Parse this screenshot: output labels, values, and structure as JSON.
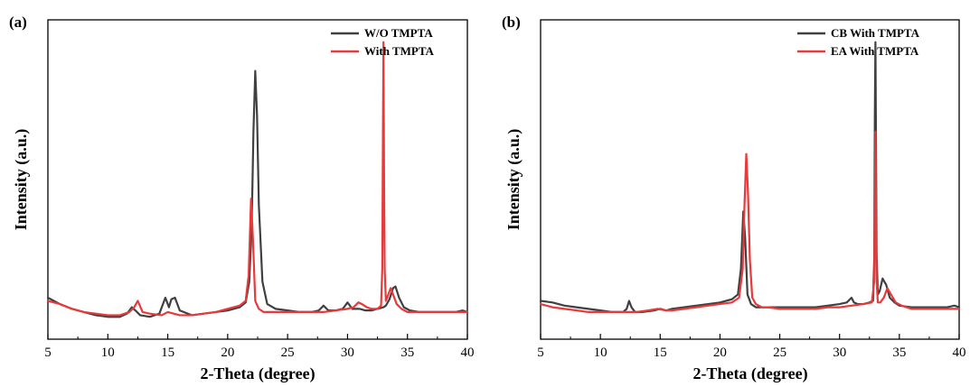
{
  "chart_data": [
    {
      "type": "line",
      "panel_label": "(a)",
      "xlabel": "2-Theta (degree)",
      "ylabel": "Intensity (a.u.)",
      "xlim": [
        5,
        40
      ],
      "ylim": [
        0,
        100
      ],
      "xticks": [
        5,
        10,
        15,
        20,
        25,
        30,
        35,
        40
      ],
      "yticks_shown": false,
      "grid": false,
      "legend_position": "top-right",
      "series": [
        {
          "name": "W/O TMPTA",
          "color": "#404040",
          "x": [
            5,
            6,
            7,
            8,
            9,
            10,
            11,
            11.6,
            12.0,
            12.3,
            12.7,
            13.5,
            14.3,
            14.8,
            15.1,
            15.3,
            15.6,
            16.0,
            17,
            18,
            19,
            20,
            21,
            21.5,
            21.8,
            22.0,
            22.15,
            22.3,
            22.45,
            22.6,
            22.9,
            23.3,
            24,
            25,
            26,
            27,
            27.6,
            28.0,
            28.4,
            29,
            29.6,
            30.0,
            30.4,
            31,
            31.5,
            32,
            32.5,
            32.8,
            33.0,
            33.2,
            33.5,
            33.8,
            34.0,
            34.3,
            34.7,
            35.2,
            36,
            37,
            38,
            39,
            39.6,
            40
          ],
          "y": [
            13,
            11,
            9.5,
            8.5,
            7.5,
            7,
            7,
            8,
            10,
            9,
            7.5,
            7,
            8,
            13,
            10,
            12.5,
            13,
            9,
            7.5,
            8,
            8.5,
            9,
            10,
            11.5,
            18,
            35,
            65,
            84,
            70,
            42,
            18,
            11,
            9.5,
            9,
            8.5,
            8.5,
            9,
            10.5,
            9,
            9,
            9.5,
            11.5,
            9.5,
            9.5,
            9,
            9,
            9.5,
            9.8,
            10,
            10.5,
            12.5,
            16,
            16.5,
            13,
            10,
            9,
            8.5,
            8.5,
            8.5,
            8.5,
            9,
            8.5
          ]
        },
        {
          "name": "With TMPTA",
          "color": "#e8393b",
          "x": [
            5,
            6,
            7,
            8,
            9,
            10,
            11,
            11.8,
            12.2,
            12.5,
            12.9,
            13.5,
            14.5,
            15.0,
            15.5,
            16,
            17,
            18,
            19,
            20,
            21,
            21.5,
            21.75,
            21.95,
            22.1,
            22.3,
            22.6,
            23.0,
            24,
            25,
            26,
            27,
            28,
            29,
            30,
            30.5,
            30.9,
            31.2,
            31.6,
            32,
            32.5,
            32.8,
            32.9,
            32.95,
            33.0,
            33.05,
            33.1,
            33.2,
            33.35,
            33.6,
            33.8,
            34.1,
            34.5,
            35,
            36,
            37,
            38,
            39,
            40
          ],
          "y": [
            12,
            11,
            9.5,
            8.5,
            8,
            7.5,
            7.5,
            8.5,
            10,
            12,
            8.5,
            8,
            7.5,
            8.5,
            8,
            7.5,
            7.5,
            8,
            8.5,
            9.5,
            10.5,
            12,
            20,
            44,
            32,
            12,
            9.5,
            8.5,
            8.5,
            8.5,
            8.5,
            8.5,
            8.5,
            9,
            9.5,
            10,
            11.5,
            11,
            10,
            9.5,
            9.5,
            10.5,
            22,
            60,
            93,
            50,
            22,
            12,
            13.5,
            16,
            14,
            11,
            9.5,
            8.5,
            8.5,
            8.5,
            8.5,
            8.5,
            8.5
          ]
        }
      ]
    },
    {
      "type": "line",
      "panel_label": "(b)",
      "xlabel": "2-Theta (degree)",
      "ylabel": "Intensity (a.u.)",
      "xlim": [
        5,
        40
      ],
      "ylim": [
        0,
        100
      ],
      "xticks": [
        5,
        10,
        15,
        20,
        25,
        30,
        35,
        40
      ],
      "yticks_shown": false,
      "grid": false,
      "legend_position": "top-right",
      "series": [
        {
          "name": "CB With TMPTA",
          "color": "#404040",
          "x": [
            5,
            6,
            7,
            8,
            9,
            10,
            11,
            11.9,
            12.2,
            12.4,
            12.6,
            12.9,
            13.5,
            14.5,
            15.0,
            15.5,
            16,
            17,
            18,
            19,
            20,
            21,
            21.5,
            21.75,
            21.95,
            22.1,
            22.3,
            22.6,
            23.0,
            24,
            25,
            26,
            27,
            28,
            29,
            30,
            30.6,
            31.0,
            31.2,
            31.5,
            32,
            32.5,
            32.8,
            32.9,
            32.95,
            33.0,
            33.05,
            33.1,
            33.2,
            33.35,
            33.6,
            33.9,
            34.2,
            34.6,
            35,
            36,
            37,
            38,
            39,
            39.6,
            40
          ],
          "y": [
            12,
            11.5,
            10.5,
            10,
            9.5,
            9,
            8.5,
            8.5,
            9.5,
            12,
            10,
            8.5,
            8.5,
            9,
            9.5,
            9,
            9.5,
            10,
            10.5,
            11,
            11.5,
            12.5,
            14,
            22,
            40,
            32,
            14,
            11,
            10,
            10,
            10,
            10,
            10,
            10,
            10.5,
            11,
            11.5,
            13,
            11.5,
            11,
            11,
            11.5,
            12,
            25,
            70,
            93,
            60,
            26,
            14,
            15,
            19,
            17,
            13,
            11.5,
            10.5,
            10,
            10,
            10,
            10,
            10.5,
            10
          ]
        },
        {
          "name": "EA With TMPTA",
          "color": "#e8393b",
          "x": [
            5,
            6,
            7,
            8,
            9,
            10,
            11,
            12,
            13,
            14,
            14.8,
            15.5,
            16,
            17,
            18,
            19,
            20,
            21,
            21.6,
            21.9,
            22.05,
            22.2,
            22.35,
            22.5,
            22.7,
            23.0,
            23.5,
            24,
            25,
            26,
            27,
            28,
            29,
            30,
            31,
            32,
            32.7,
            32.9,
            32.95,
            33.0,
            33.05,
            33.1,
            33.2,
            33.4,
            33.7,
            34.0,
            34.3,
            34.7,
            35.2,
            36,
            37,
            38,
            39,
            40
          ],
          "y": [
            11,
            10,
            9.5,
            9,
            8.5,
            8.5,
            8.5,
            8.5,
            8.5,
            9,
            9.5,
            9,
            9,
            9.5,
            10,
            10.5,
            11,
            11.5,
            13,
            22,
            42,
            58,
            45,
            25,
            13,
            11,
            10,
            10,
            9.5,
            9.5,
            9.5,
            9.5,
            10,
            10,
            10.5,
            11,
            11.5,
            18,
            40,
            65,
            40,
            18,
            11.5,
            11.5,
            13,
            16,
            14,
            11.5,
            10.5,
            9.5,
            9.5,
            9.5,
            9.5,
            9.5
          ]
        }
      ]
    }
  ]
}
